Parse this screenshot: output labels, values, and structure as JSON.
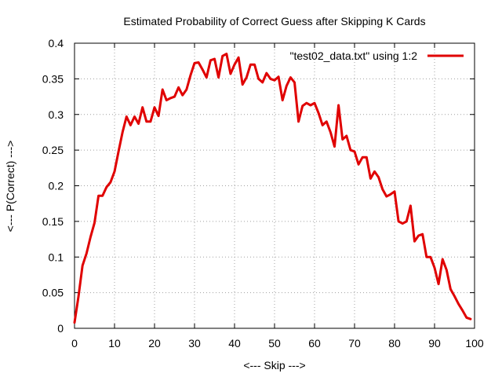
{
  "chart_data": {
    "type": "line",
    "title": "Estimated Probability of Correct Guess after Skipping K Cards",
    "xlabel": "<--- Skip --->",
    "ylabel": "<--- P(Correct) --->",
    "xlim": [
      0,
      100
    ],
    "ylim": [
      0,
      0.4
    ],
    "grid": true,
    "legend_position": "top-right",
    "x_ticks": [
      "0",
      "10",
      "20",
      "30",
      "40",
      "50",
      "60",
      "70",
      "80",
      "90",
      "100"
    ],
    "y_ticks": [
      "0",
      "0.05",
      "0.1",
      "0.15",
      "0.2",
      "0.25",
      "0.3",
      "0.35",
      "0.4"
    ],
    "series": [
      {
        "name": "\"test02_data.txt\" using 1:2",
        "color": "#e00000",
        "x": [
          0,
          1,
          2,
          3,
          4,
          5,
          6,
          7,
          8,
          9,
          10,
          11,
          12,
          13,
          14,
          15,
          16,
          17,
          18,
          19,
          20,
          21,
          22,
          23,
          24,
          25,
          26,
          27,
          28,
          29,
          30,
          31,
          32,
          33,
          34,
          35,
          36,
          37,
          38,
          39,
          40,
          41,
          42,
          43,
          44,
          45,
          46,
          47,
          48,
          49,
          50,
          51,
          52,
          53,
          54,
          55,
          56,
          57,
          58,
          59,
          60,
          61,
          62,
          63,
          64,
          65,
          66,
          67,
          68,
          69,
          70,
          71,
          72,
          73,
          74,
          75,
          76,
          77,
          78,
          79,
          80,
          81,
          82,
          83,
          84,
          85,
          86,
          87,
          88,
          89,
          90,
          91,
          92,
          93,
          94,
          95,
          96,
          97,
          98,
          99
        ],
        "y": [
          0.008,
          0.045,
          0.088,
          0.105,
          0.128,
          0.148,
          0.186,
          0.186,
          0.198,
          0.205,
          0.22,
          0.248,
          0.275,
          0.297,
          0.285,
          0.297,
          0.287,
          0.31,
          0.29,
          0.29,
          0.31,
          0.298,
          0.335,
          0.32,
          0.323,
          0.325,
          0.338,
          0.327,
          0.335,
          0.355,
          0.372,
          0.373,
          0.363,
          0.352,
          0.376,
          0.378,
          0.352,
          0.382,
          0.385,
          0.357,
          0.37,
          0.38,
          0.342,
          0.352,
          0.37,
          0.37,
          0.35,
          0.345,
          0.358,
          0.35,
          0.348,
          0.353,
          0.32,
          0.34,
          0.352,
          0.345,
          0.29,
          0.312,
          0.316,
          0.313,
          0.316,
          0.302,
          0.285,
          0.29,
          0.275,
          0.255,
          0.313,
          0.265,
          0.27,
          0.25,
          0.248,
          0.23,
          0.24,
          0.24,
          0.21,
          0.22,
          0.212,
          0.195,
          0.185,
          0.188,
          0.192,
          0.15,
          0.147,
          0.15,
          0.172,
          0.122,
          0.13,
          0.132,
          0.1,
          0.1,
          0.085,
          0.062,
          0.097,
          0.082,
          0.055,
          0.045,
          0.034,
          0.025,
          0.015,
          0.013
        ]
      }
    ]
  }
}
